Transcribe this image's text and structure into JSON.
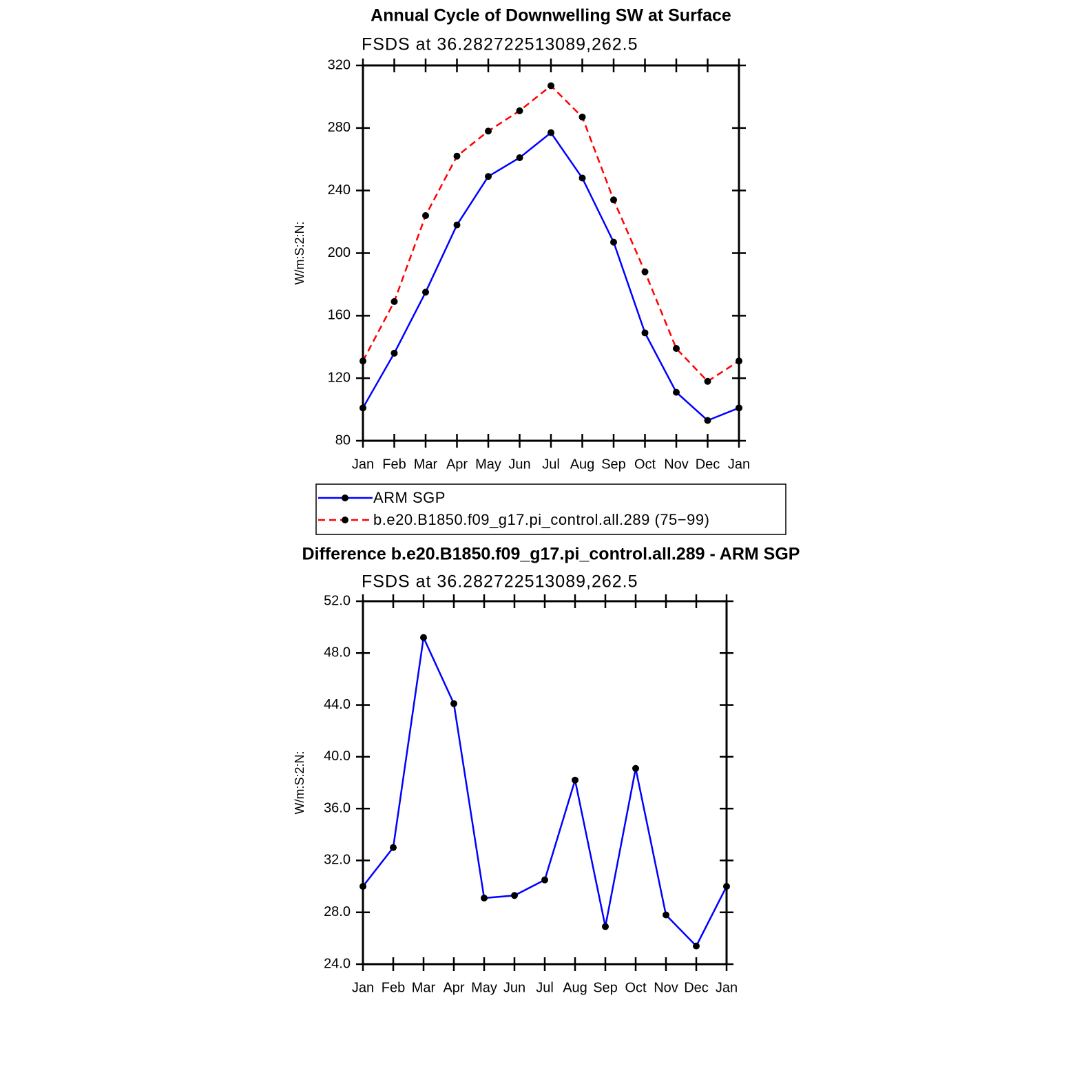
{
  "chart_data": [
    {
      "type": "line",
      "title": "Annual Cycle of Downwelling SW at Surface",
      "subtitle": "FSDS at 36.282722513089,262.5",
      "y_label": "W/m:S:2:N:",
      "categories": [
        "Jan",
        "Feb",
        "Mar",
        "Apr",
        "May",
        "Jun",
        "Jul",
        "Aug",
        "Sep",
        "Oct",
        "Nov",
        "Dec",
        "Jan"
      ],
      "series": [
        {
          "name": "ARM SGP",
          "color": "#0000ff",
          "line_style": "solid",
          "values": [
            101,
            136,
            175,
            218,
            249,
            261,
            277,
            248,
            207,
            149,
            111,
            93,
            101
          ]
        },
        {
          "name": "b.e20.B1850.f09_g17.pi_control.all.289 (75−99)",
          "color": "#ff0000",
          "line_style": "dashed",
          "values": [
            131,
            169,
            224,
            262,
            278,
            291,
            307,
            287,
            234,
            188,
            139,
            118,
            131
          ]
        }
      ],
      "marker_color": "#000000",
      "ylim": [
        80,
        320
      ],
      "yticks": [
        80,
        120,
        160,
        200,
        240,
        280,
        320
      ],
      "legend": "below"
    },
    {
      "type": "line",
      "title": "Difference b.e20.B1850.f09_g17.pi_control.all.289 - ARM SGP",
      "subtitle": "FSDS at 36.282722513089,262.5",
      "y_label": "W/m:S:2:N:",
      "categories": [
        "Jan",
        "Feb",
        "Mar",
        "Apr",
        "May",
        "Jun",
        "Jul",
        "Aug",
        "Sep",
        "Oct",
        "Nov",
        "Dec",
        "Jan"
      ],
      "series": [
        {
          "color": "#0000ff",
          "line_style": "solid",
          "values": [
            30.0,
            33.0,
            49.2,
            44.1,
            29.1,
            29.3,
            30.5,
            38.2,
            26.9,
            39.1,
            27.8,
            25.4,
            30.0
          ]
        }
      ],
      "marker_color": "#000000",
      "ylim": [
        24,
        52
      ],
      "yticks": [
        {
          "value": 24,
          "label": "24.0"
        },
        {
          "value": 28,
          "label": "28.0"
        },
        {
          "value": 32,
          "label": "32.0"
        },
        {
          "value": 36,
          "label": "36.0"
        },
        {
          "value": 40,
          "label": "40.0"
        },
        {
          "value": 44,
          "label": "44.0"
        },
        {
          "value": 48,
          "label": "48.0"
        },
        {
          "value": 52,
          "label": "52.0"
        }
      ]
    }
  ]
}
